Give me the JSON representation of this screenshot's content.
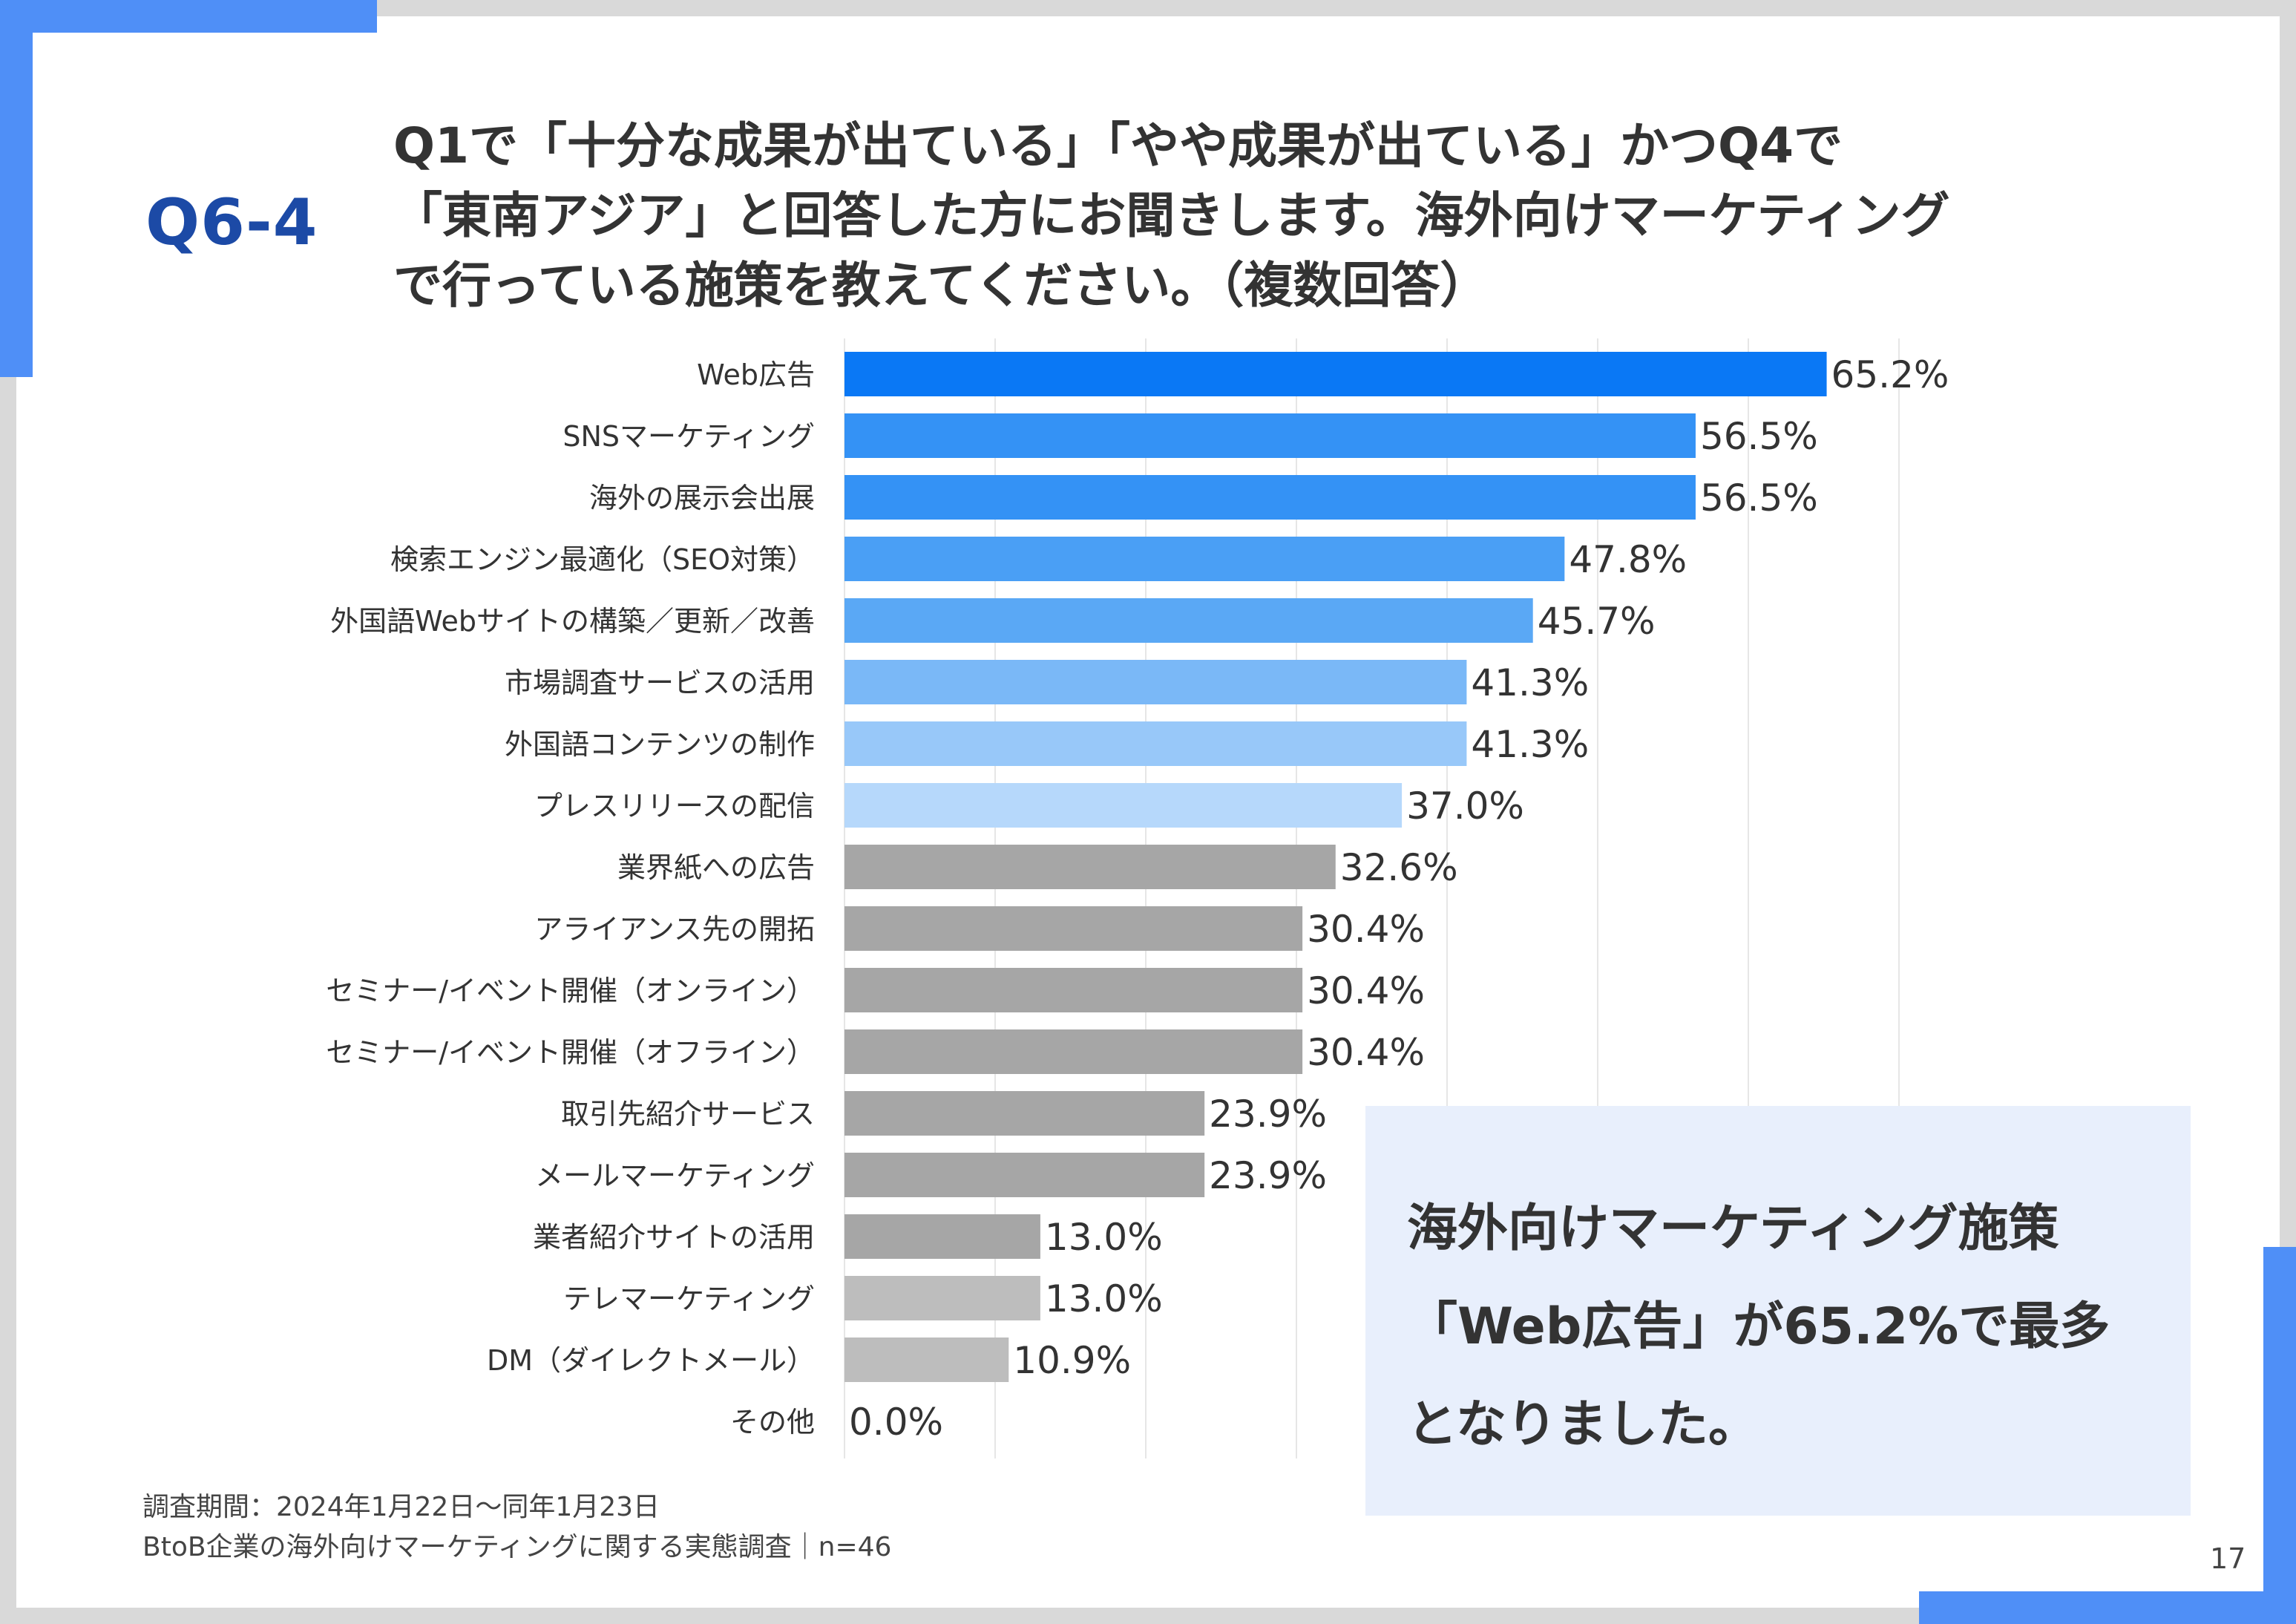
{
  "header": {
    "qnum": "Q6-4",
    "question_lines": [
      "Q1で「十分な成果が出ている」「やや成果が出ている」かつQ4で",
      "「東南アジア」と回答した方にお聞きします。海外向けマーケティング",
      "で行っている施策を教えてください。（複数回答）"
    ]
  },
  "chart_data": {
    "type": "bar",
    "orientation": "horizontal",
    "categories": [
      "Web広告",
      "SNSマーケティング",
      "海外の展示会出展",
      "検索エンジン最適化（SEO対策）",
      "外国語Webサイトの構築／更新／改善",
      "市場調査サービスの活用",
      "外国語コンテンツの制作",
      "プレスリリースの配信",
      "業界紙への広告",
      "アライアンス先の開拓",
      "セミナー/イベント開催（オンライン）",
      "セミナー/イベント開催（オフライン）",
      "取引先紹介サービス",
      "メールマーケティング",
      "業者紹介サイトの活用",
      "テレマーケティング",
      "DM（ダイレクトメール）",
      "その他"
    ],
    "values": [
      65.2,
      56.5,
      56.5,
      47.8,
      45.7,
      41.3,
      41.3,
      37.0,
      32.6,
      30.4,
      30.4,
      30.4,
      23.9,
      23.9,
      13.0,
      13.0,
      10.9,
      0.0
    ],
    "value_labels": [
      "65.2%",
      "56.5%",
      "56.5%",
      "47.8%",
      "45.7%",
      "41.3%",
      "41.3%",
      "37.0%",
      "32.6%",
      "30.4%",
      "30.4%",
      "30.4%",
      "23.9%",
      "23.9%",
      "13.0%",
      "13.0%",
      "10.9%",
      "0.0%"
    ],
    "colors": [
      "#0a78f5",
      "#3492f5",
      "#3492f5",
      "#4a9ff5",
      "#5aa8f5",
      "#7ab8f7",
      "#98c8f9",
      "#b6d8fb",
      "#a6a6a6",
      "#a6a6a6",
      "#a6a6a6",
      "#a6a6a6",
      "#a6a6a6",
      "#a6a6a6",
      "#a6a6a6",
      "#bdbdbd",
      "#bdbdbd",
      "#bdbdbd"
    ],
    "xlim": [
      0,
      100
    ],
    "grid": true
  },
  "callout": {
    "lines": [
      "海外向けマーケティング施策",
      "「Web広告」が65.2%で最多",
      "となりました。"
    ]
  },
  "footer": {
    "line1": "調査期間：2024年1月22日～同年1月23日",
    "line2": "BtoB企業の海外向けマーケティングに関する実態調査｜n=46"
  },
  "page_number": "17"
}
